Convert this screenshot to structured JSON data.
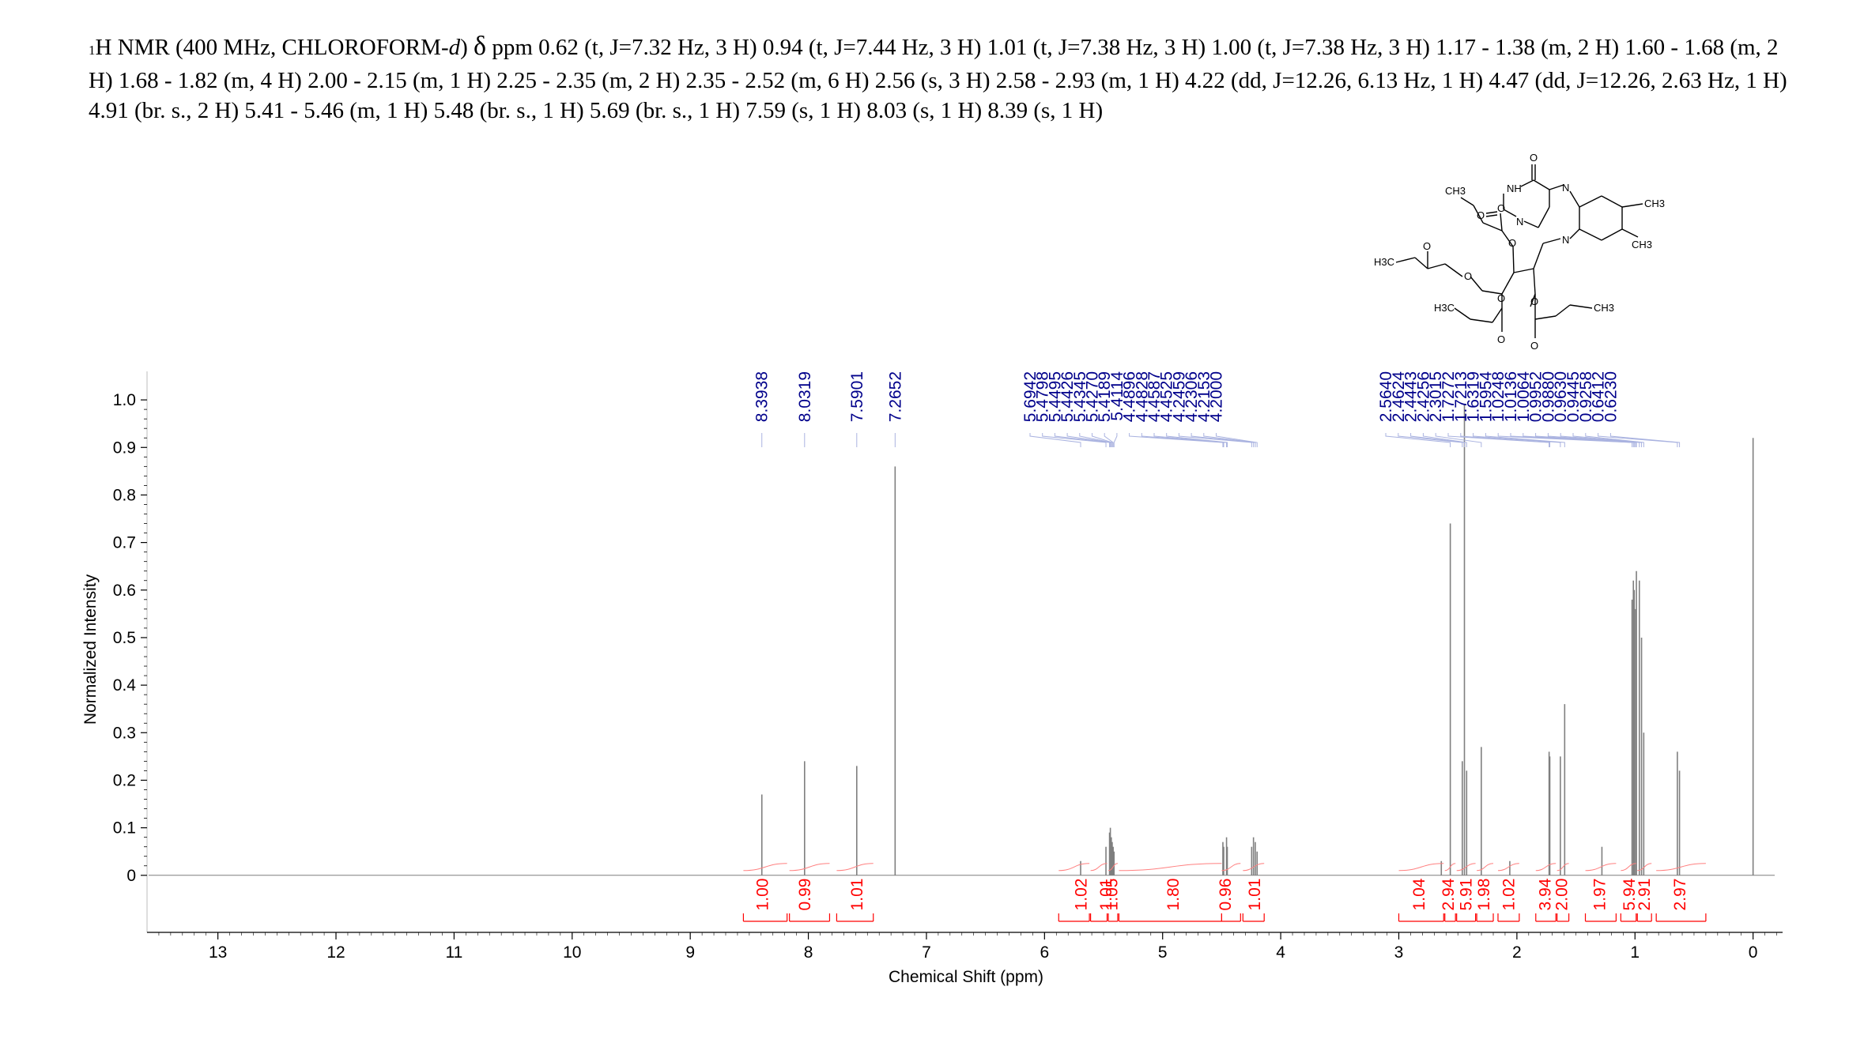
{
  "header": {
    "nucleus_sup": "1",
    "nucleus": "H NMR (400 MHz, CHLOROFORM-",
    "solvent_d": "d",
    "close_paren": ")",
    "delta": "δ",
    "peak_list": " ppm 0.62 (t, J=7.32 Hz, 3 H) 0.94 (t, J=7.44 Hz, 3 H) 1.01 (t, J=7.38 Hz, 3 H) 1.00 (t, J=7.38 Hz, 3 H) 1.17 - 1.38 (m, 2 H) 1.60 - 1.68 (m, 2 H) 1.68 - 1.82 (m, 4 H) 2.00 - 2.15 (m, 1 H) 2.25 - 2.35 (m, 2 H) 2.35 - 2.52 (m, 6 H) 2.56 (s, 3 H) 2.58 - 2.93 (m, 1 H) 4.22 (dd, J=12.26, 6.13 Hz, 1 H) 4.47 (dd, J=12.26, 2.63 Hz, 1 H) 4.91 (br. s., 2 H) 5.41 - 5.46 (m, 1 H) 5.48 (br. s., 1 H) 5.69 (br. s., 1 H) 7.59 (s, 1 H) 8.03 (s, 1 H) 8.39 (s, 1 H)"
  },
  "structure_labels": {
    "o_top": "O",
    "nh": "NH",
    "o_left": "O",
    "n_top": "N",
    "n_mid": "N",
    "n_bottom": "N",
    "ch3_ring_1": "CH3",
    "ch3_ring_2": "CH3",
    "ch3_chain": "CH3",
    "o_ester1": "O",
    "o_ester1b": "O",
    "o_ester2": "O",
    "o_ester2b": "O",
    "h3c_left": "H3C",
    "h3c_mid": "H3C",
    "o_ester3": "O",
    "o_ester3b": "O",
    "o_ester4": "O",
    "o_ester4b": "O",
    "ch3_right": "CH3"
  },
  "colors": {
    "spectrum": "#7f7f7f",
    "integral": "#ff0000",
    "peak_label": "#00008b",
    "peak_connector": "#aab3e0",
    "axis": "#000000"
  },
  "chart_data": {
    "type": "line",
    "xlabel": "Chemical Shift (ppm)",
    "ylabel": "Normalized Intensity",
    "xlim": [
      13.6,
      -0.25
    ],
    "ylim": [
      -0.12,
      1.06
    ],
    "x_ticks": [
      13,
      12,
      11,
      10,
      9,
      8,
      7,
      6,
      5,
      4,
      3,
      2,
      1,
      0
    ],
    "y_ticks": [
      0,
      0.1,
      0.2,
      0.3,
      0.4,
      0.5,
      0.6,
      0.7,
      0.8,
      0.9,
      1.0
    ],
    "y_tick_labels": [
      "0",
      "0.1",
      "0.2",
      "0.3",
      "0.4",
      "0.5",
      "0.6",
      "0.7",
      "0.8",
      "0.9",
      "1.0"
    ],
    "peaks": [
      {
        "ppm": 8.3938,
        "height": 0.17
      },
      {
        "ppm": 8.0319,
        "height": 0.24
      },
      {
        "ppm": 7.5901,
        "height": 0.23
      },
      {
        "ppm": 7.2652,
        "height": 0.86
      },
      {
        "ppm": 5.6942,
        "height": 0.03
      },
      {
        "ppm": 5.4798,
        "height": 0.06
      },
      {
        "ppm": 5.4495,
        "height": 0.09
      },
      {
        "ppm": 5.4426,
        "height": 0.1
      },
      {
        "ppm": 5.4345,
        "height": 0.08
      },
      {
        "ppm": 5.427,
        "height": 0.07
      },
      {
        "ppm": 5.4189,
        "height": 0.06
      },
      {
        "ppm": 5.4114,
        "height": 0.05
      },
      {
        "ppm": 4.4896,
        "height": 0.07
      },
      {
        "ppm": 4.4828,
        "height": 0.06
      },
      {
        "ppm": 4.4587,
        "height": 0.08
      },
      {
        "ppm": 4.4525,
        "height": 0.06
      },
      {
        "ppm": 4.2459,
        "height": 0.06
      },
      {
        "ppm": 4.2306,
        "height": 0.08
      },
      {
        "ppm": 4.2153,
        "height": 0.07
      },
      {
        "ppm": 4.2,
        "height": 0.05
      },
      {
        "ppm": 2.64,
        "height": 0.03
      },
      {
        "ppm": 2.564,
        "height": 0.74
      },
      {
        "ppm": 2.4624,
        "height": 0.24
      },
      {
        "ppm": 2.4443,
        "height": 0.99
      },
      {
        "ppm": 2.4256,
        "height": 0.22
      },
      {
        "ppm": 2.3015,
        "height": 0.27
      },
      {
        "ppm": 2.06,
        "height": 0.03
      },
      {
        "ppm": 1.7272,
        "height": 0.26
      },
      {
        "ppm": 1.7213,
        "height": 0.25
      },
      {
        "ppm": 1.6319,
        "height": 0.25
      },
      {
        "ppm": 1.5954,
        "height": 0.36
      },
      {
        "ppm": 1.28,
        "height": 0.06
      },
      {
        "ppm": 1.0248,
        "height": 0.58
      },
      {
        "ppm": 1.0136,
        "height": 0.62
      },
      {
        "ppm": 1.0064,
        "height": 0.6
      },
      {
        "ppm": 0.9952,
        "height": 0.56
      },
      {
        "ppm": 0.988,
        "height": 0.64
      },
      {
        "ppm": 0.963,
        "height": 0.62
      },
      {
        "ppm": 0.9445,
        "height": 0.5
      },
      {
        "ppm": 0.9258,
        "height": 0.3
      },
      {
        "ppm": 0.6412,
        "height": 0.26
      },
      {
        "ppm": 0.623,
        "height": 0.22
      },
      {
        "ppm": 0.0,
        "height": 0.92
      }
    ],
    "peak_labels": {
      "group_aromatic": [
        "8.3938",
        "8.0319",
        "7.5901",
        "7.2652"
      ],
      "group_mid": [
        "5.6942",
        "5.4798",
        "5.4495",
        "5.4426",
        "5.4345",
        "5.4270",
        "5.4189",
        "5.4114",
        "4.4896",
        "4.4828",
        "4.4587",
        "4.4525",
        "4.2459",
        "4.2306",
        "4.2153",
        "4.2000"
      ],
      "group_aliphatic": [
        "2.5640",
        "2.4624",
        "2.4443",
        "2.4256",
        "2.3015",
        "1.7272",
        "1.7213",
        "1.6319",
        "1.5954",
        "1.0248",
        "1.0136",
        "1.0064",
        "0.9952",
        "0.9880",
        "0.9630",
        "0.9445",
        "0.9258",
        "0.6412",
        "0.6230"
      ]
    },
    "integrals": [
      {
        "from": 8.55,
        "to": 8.18,
        "value": "1.00",
        "label_ppm": 8.39
      },
      {
        "from": 8.16,
        "to": 7.82,
        "value": "0.99",
        "label_ppm": 8.03
      },
      {
        "from": 7.76,
        "to": 7.45,
        "value": "1.01",
        "label_ppm": 7.59
      },
      {
        "from": 5.88,
        "to": 5.62,
        "value": "1.02",
        "label_ppm": 5.69
      },
      {
        "from": 5.61,
        "to": 5.47,
        "value": "1.01",
        "label_ppm": 5.48
      },
      {
        "from": 5.46,
        "to": 5.38,
        "value": "1.05",
        "label_ppm": 5.43
      },
      {
        "from": 5.37,
        "to": 4.5,
        "value": "1.80",
        "label_ppm": 4.91
      },
      {
        "from": 4.5,
        "to": 4.34,
        "value": "0.96",
        "label_ppm": 4.47
      },
      {
        "from": 4.32,
        "to": 4.14,
        "value": "1.01",
        "label_ppm": 4.22
      },
      {
        "from": 3.0,
        "to": 2.62,
        "value": "1.04",
        "label_ppm": 2.83
      },
      {
        "from": 2.61,
        "to": 2.52,
        "value": "2.94",
        "label_ppm": 2.58
      },
      {
        "from": 2.51,
        "to": 2.35,
        "value": "5.91",
        "label_ppm": 2.43
      },
      {
        "from": 2.34,
        "to": 2.2,
        "value": "1.98",
        "label_ppm": 2.28
      },
      {
        "from": 2.16,
        "to": 1.98,
        "value": "1.02",
        "label_ppm": 2.07
      },
      {
        "from": 1.84,
        "to": 1.67,
        "value": "3.94",
        "label_ppm": 1.76
      },
      {
        "from": 1.66,
        "to": 1.56,
        "value": "2.00",
        "label_ppm": 1.62
      },
      {
        "from": 1.42,
        "to": 1.16,
        "value": "1.97",
        "label_ppm": 1.3
      },
      {
        "from": 1.12,
        "to": 0.99,
        "value": "5.94",
        "label_ppm": 1.05
      },
      {
        "from": 0.98,
        "to": 0.86,
        "value": "2.91",
        "label_ppm": 0.92
      },
      {
        "from": 0.82,
        "to": 0.4,
        "value": "2.97",
        "label_ppm": 0.62
      }
    ]
  }
}
